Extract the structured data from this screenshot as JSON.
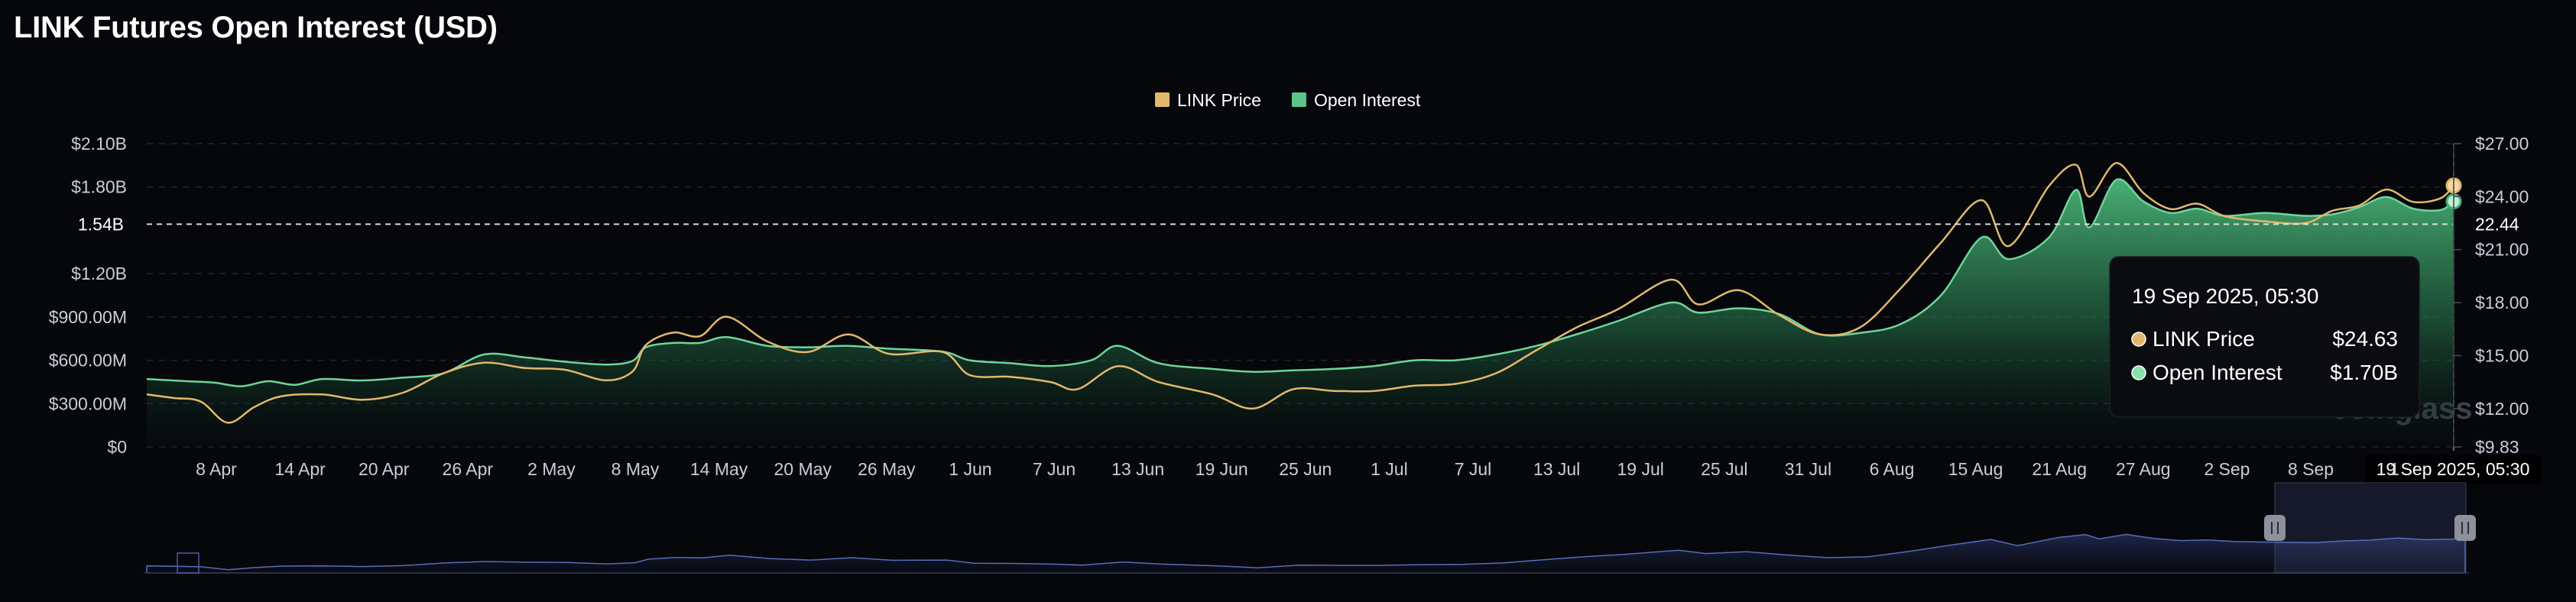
{
  "title": "LINK Futures Open Interest (USD)",
  "watermark": "coinglass",
  "colors": {
    "price": "#e2b86b",
    "oi": "#48b078",
    "background": "#05070b",
    "navigator": "#5a6bb8"
  },
  "legend": [
    {
      "label": "LINK Price",
      "color": "#e2b86b",
      "swatch_name": "legend-swatch-price",
      "text_name": "legend-label-price"
    },
    {
      "label": "Open Interest",
      "color": "#5cc489",
      "swatch_name": "legend-swatch-oi",
      "text_name": "legend-label-oi"
    }
  ],
  "crosshair": {
    "price_level": 22.44,
    "left_label": "1.54B",
    "right_label": "22.44",
    "x_label": "19 Sep 2025, 05:30"
  },
  "tooltip": {
    "title": "19 Sep 2025, 05:30",
    "rows": [
      {
        "name": "LINK Price",
        "value": "$24.63",
        "color": "#e2b86b"
      },
      {
        "name": "Open Interest",
        "value": "$1.70B",
        "color": "#8ce0b0"
      }
    ]
  },
  "chart_data": {
    "type": "area",
    "title": "LINK Futures Open Interest (USD)",
    "x_tick_labels": [
      "8 Apr",
      "14 Apr",
      "20 Apr",
      "26 Apr",
      "2 May",
      "8 May",
      "14 May",
      "20 May",
      "26 May",
      "1 Jun",
      "7 Jun",
      "13 Jun",
      "19 Jun",
      "25 Jun",
      "1 Jul",
      "7 Jul",
      "13 Jul",
      "19 Jul",
      "25 Jul",
      "31 Jul",
      "6 Aug",
      "15 Aug",
      "21 Aug",
      "27 Aug",
      "2 Sep",
      "8 Sep",
      "1"
    ],
    "x_range": [
      "2025-04-01",
      "2025-09-19"
    ],
    "y_left": {
      "ticks": [
        0,
        300,
        600,
        900,
        1200,
        1800,
        2100
      ],
      "tick_labels": [
        "$0",
        "$300.00M",
        "$600.00M",
        "$900.00M",
        "$1.20B",
        "$1.80B",
        "$2.10B"
      ],
      "range": [
        0,
        2100
      ],
      "unit": "USD millions"
    },
    "y_right": {
      "ticks": [
        9.83,
        12,
        15,
        18,
        21,
        24,
        27
      ],
      "tick_labels": [
        "$9.83",
        "$12.00",
        "$15.00",
        "$18.00",
        "$21.00",
        "$24.00",
        "$27.00"
      ],
      "range": [
        9.83,
        27
      ]
    },
    "grid": true,
    "legend_position": "top-center",
    "series": [
      {
        "name": "Open Interest",
        "axis": "left",
        "style": "area",
        "points": [
          [
            "2025-04-01",
            470
          ],
          [
            "2025-04-04",
            455
          ],
          [
            "2025-04-06",
            445
          ],
          [
            "2025-04-08",
            420
          ],
          [
            "2025-04-10",
            455
          ],
          [
            "2025-04-12",
            430
          ],
          [
            "2025-04-14",
            470
          ],
          [
            "2025-04-17",
            460
          ],
          [
            "2025-04-20",
            480
          ],
          [
            "2025-04-23",
            510
          ],
          [
            "2025-04-26",
            640
          ],
          [
            "2025-04-29",
            620
          ],
          [
            "2025-05-02",
            590
          ],
          [
            "2025-05-05",
            570
          ],
          [
            "2025-05-07",
            595
          ],
          [
            "2025-05-08",
            690
          ],
          [
            "2025-05-10",
            720
          ],
          [
            "2025-05-12",
            720
          ],
          [
            "2025-05-14",
            760
          ],
          [
            "2025-05-17",
            700
          ],
          [
            "2025-05-20",
            690
          ],
          [
            "2025-05-23",
            700
          ],
          [
            "2025-05-26",
            680
          ],
          [
            "2025-05-30",
            660
          ],
          [
            "2025-06-01",
            600
          ],
          [
            "2025-06-04",
            580
          ],
          [
            "2025-06-07",
            560
          ],
          [
            "2025-06-10",
            600
          ],
          [
            "2025-06-12",
            700
          ],
          [
            "2025-06-15",
            580
          ],
          [
            "2025-06-19",
            540
          ],
          [
            "2025-06-22",
            520
          ],
          [
            "2025-06-25",
            530
          ],
          [
            "2025-06-28",
            540
          ],
          [
            "2025-07-01",
            560
          ],
          [
            "2025-07-04",
            600
          ],
          [
            "2025-07-07",
            600
          ],
          [
            "2025-07-10",
            640
          ],
          [
            "2025-07-13",
            700
          ],
          [
            "2025-07-16",
            780
          ],
          [
            "2025-07-19",
            870
          ],
          [
            "2025-07-23",
            1000
          ],
          [
            "2025-07-25",
            930
          ],
          [
            "2025-07-28",
            960
          ],
          [
            "2025-07-31",
            920
          ],
          [
            "2025-08-03",
            780
          ],
          [
            "2025-08-06",
            790
          ],
          [
            "2025-08-09",
            850
          ],
          [
            "2025-08-12",
            1050
          ],
          [
            "2025-08-15",
            1450
          ],
          [
            "2025-08-17",
            1300
          ],
          [
            "2025-08-20",
            1450
          ],
          [
            "2025-08-22",
            1780
          ],
          [
            "2025-08-23",
            1520
          ],
          [
            "2025-08-25",
            1850
          ],
          [
            "2025-08-27",
            1700
          ],
          [
            "2025-08-29",
            1620
          ],
          [
            "2025-08-31",
            1650
          ],
          [
            "2025-09-02",
            1600
          ],
          [
            "2025-09-05",
            1620
          ],
          [
            "2025-09-08",
            1600
          ],
          [
            "2025-09-10",
            1610
          ],
          [
            "2025-09-12",
            1660
          ],
          [
            "2025-09-14",
            1730
          ],
          [
            "2025-09-16",
            1650
          ],
          [
            "2025-09-18",
            1640
          ],
          [
            "2025-09-19",
            1700
          ]
        ]
      },
      {
        "name": "LINK Price",
        "axis": "right",
        "style": "line",
        "points": [
          [
            "2025-04-01",
            12.8
          ],
          [
            "2025-04-03",
            12.6
          ],
          [
            "2025-04-05",
            12.4
          ],
          [
            "2025-04-07",
            11.2
          ],
          [
            "2025-04-09",
            12.1
          ],
          [
            "2025-04-11",
            12.7
          ],
          [
            "2025-04-14",
            12.8
          ],
          [
            "2025-04-17",
            12.5
          ],
          [
            "2025-04-20",
            12.9
          ],
          [
            "2025-04-23",
            14.0
          ],
          [
            "2025-04-26",
            14.6
          ],
          [
            "2025-04-29",
            14.3
          ],
          [
            "2025-05-02",
            14.2
          ],
          [
            "2025-05-05",
            13.6
          ],
          [
            "2025-05-07",
            14.1
          ],
          [
            "2025-05-08",
            15.6
          ],
          [
            "2025-05-10",
            16.3
          ],
          [
            "2025-05-12",
            16.1
          ],
          [
            "2025-05-14",
            17.2
          ],
          [
            "2025-05-17",
            15.8
          ],
          [
            "2025-05-20",
            15.2
          ],
          [
            "2025-05-23",
            16.2
          ],
          [
            "2025-05-26",
            15.1
          ],
          [
            "2025-05-30",
            15.2
          ],
          [
            "2025-06-01",
            13.9
          ],
          [
            "2025-06-04",
            13.8
          ],
          [
            "2025-06-07",
            13.5
          ],
          [
            "2025-06-09",
            13.1
          ],
          [
            "2025-06-12",
            14.4
          ],
          [
            "2025-06-15",
            13.5
          ],
          [
            "2025-06-19",
            12.8
          ],
          [
            "2025-06-22",
            12.0
          ],
          [
            "2025-06-25",
            13.1
          ],
          [
            "2025-06-28",
            13.0
          ],
          [
            "2025-07-01",
            13.0
          ],
          [
            "2025-07-04",
            13.3
          ],
          [
            "2025-07-07",
            13.4
          ],
          [
            "2025-07-10",
            14.0
          ],
          [
            "2025-07-13",
            15.3
          ],
          [
            "2025-07-16",
            16.6
          ],
          [
            "2025-07-19",
            17.6
          ],
          [
            "2025-07-23",
            19.3
          ],
          [
            "2025-07-25",
            17.9
          ],
          [
            "2025-07-28",
            18.7
          ],
          [
            "2025-07-31",
            17.3
          ],
          [
            "2025-08-03",
            16.2
          ],
          [
            "2025-08-06",
            16.6
          ],
          [
            "2025-08-09",
            18.8
          ],
          [
            "2025-08-12",
            21.4
          ],
          [
            "2025-08-15",
            23.8
          ],
          [
            "2025-08-17",
            21.2
          ],
          [
            "2025-08-20",
            24.6
          ],
          [
            "2025-08-22",
            25.8
          ],
          [
            "2025-08-23",
            24.0
          ],
          [
            "2025-08-25",
            25.9
          ],
          [
            "2025-08-27",
            24.2
          ],
          [
            "2025-08-29",
            23.3
          ],
          [
            "2025-08-31",
            23.6
          ],
          [
            "2025-09-02",
            22.9
          ],
          [
            "2025-09-05",
            22.6
          ],
          [
            "2025-09-08",
            22.5
          ],
          [
            "2025-09-10",
            23.2
          ],
          [
            "2025-09-12",
            23.5
          ],
          [
            "2025-09-14",
            24.4
          ],
          [
            "2025-09-16",
            23.7
          ],
          [
            "2025-09-18",
            23.9
          ],
          [
            "2025-09-19",
            24.63
          ]
        ]
      }
    ]
  }
}
